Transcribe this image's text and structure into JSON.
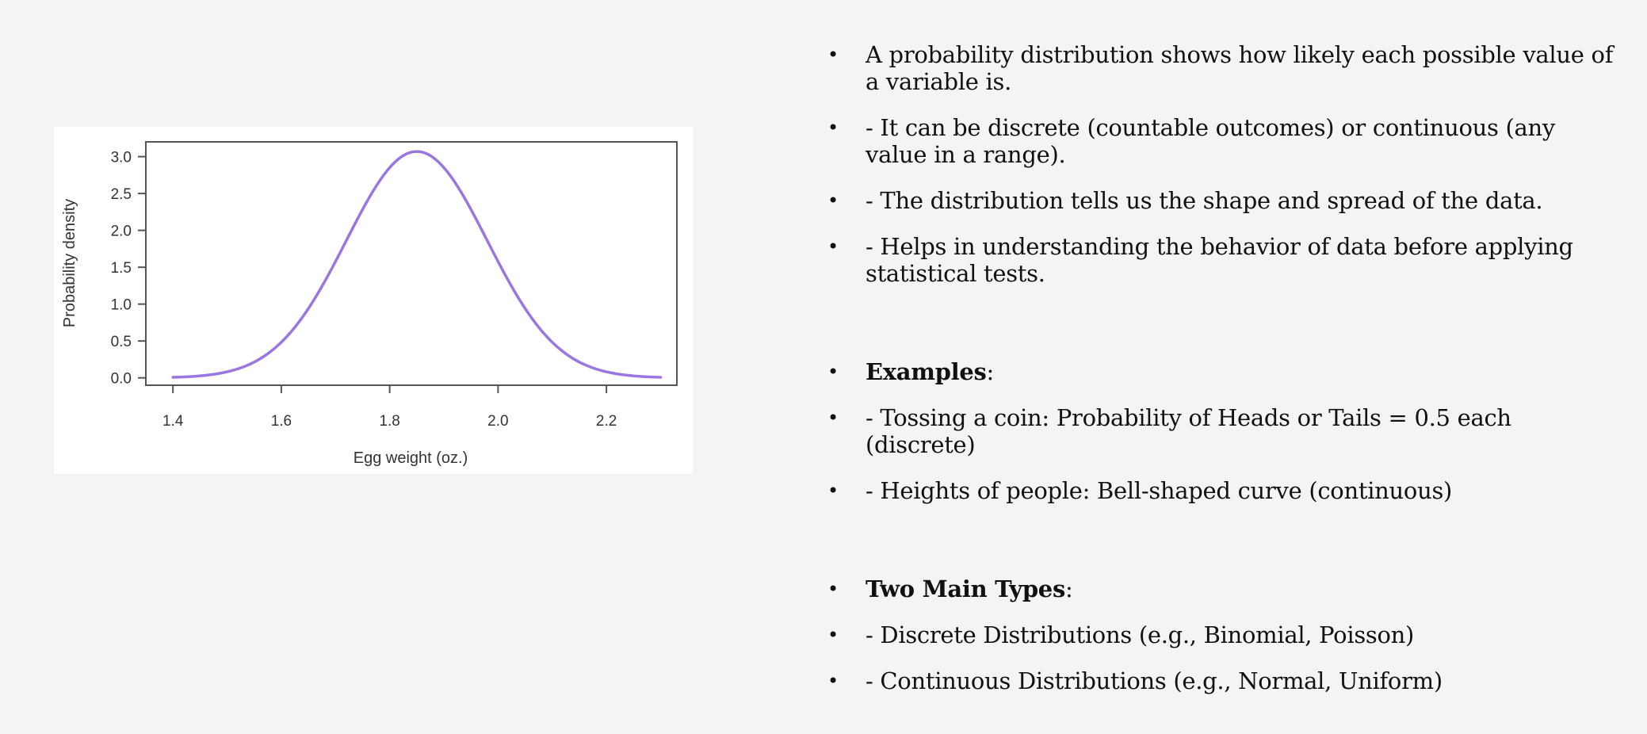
{
  "chart_data": {
    "type": "line",
    "title": "",
    "xlabel": "Egg weight (oz.)",
    "ylabel": "Probability density",
    "xlim": [
      1.35,
      2.33
    ],
    "ylim": [
      -0.1,
      3.2
    ],
    "x_ticks": [
      "1.4",
      "1.6",
      "1.8",
      "2.0",
      "2.2"
    ],
    "y_ticks": [
      "0.0",
      "0.5",
      "1.0",
      "1.5",
      "2.0",
      "2.5",
      "3.0"
    ],
    "series": [
      {
        "distribution": "normal",
        "mean": 1.85,
        "sd": 0.13,
        "x_range": [
          1.4,
          2.3
        ],
        "peak_density": 3.07,
        "color": "#9a76e0"
      }
    ],
    "grid": false,
    "legend": "none"
  },
  "bullets": {
    "items": [
      {
        "bold": "",
        "text": "A probability distribution shows how likely each possible value of a variable is."
      },
      {
        "bold": "",
        "text": "- It can be discrete (countable outcomes) or continuous (any value in a range)."
      },
      {
        "bold": "",
        "text": "- The distribution tells us the shape and spread of the data."
      },
      {
        "bold": "",
        "text": "- Helps in understanding the behavior of data before applying statistical tests."
      },
      {
        "bold": "Examples",
        "text": ":"
      },
      {
        "bold": "",
        "text": "- Tossing a coin: Probability of Heads or Tails = 0.5 each (discrete)"
      },
      {
        "bold": "",
        "text": "- Heights of people: Bell-shaped curve (continuous)"
      },
      {
        "bold": "Two Main Types",
        "text": ":"
      },
      {
        "bold": "",
        "text": "- Discrete Distributions (e.g., Binomial, Poisson)"
      },
      {
        "bold": "",
        "text": "- Continuous Distributions (e.g., Normal, Uniform)"
      }
    ]
  }
}
